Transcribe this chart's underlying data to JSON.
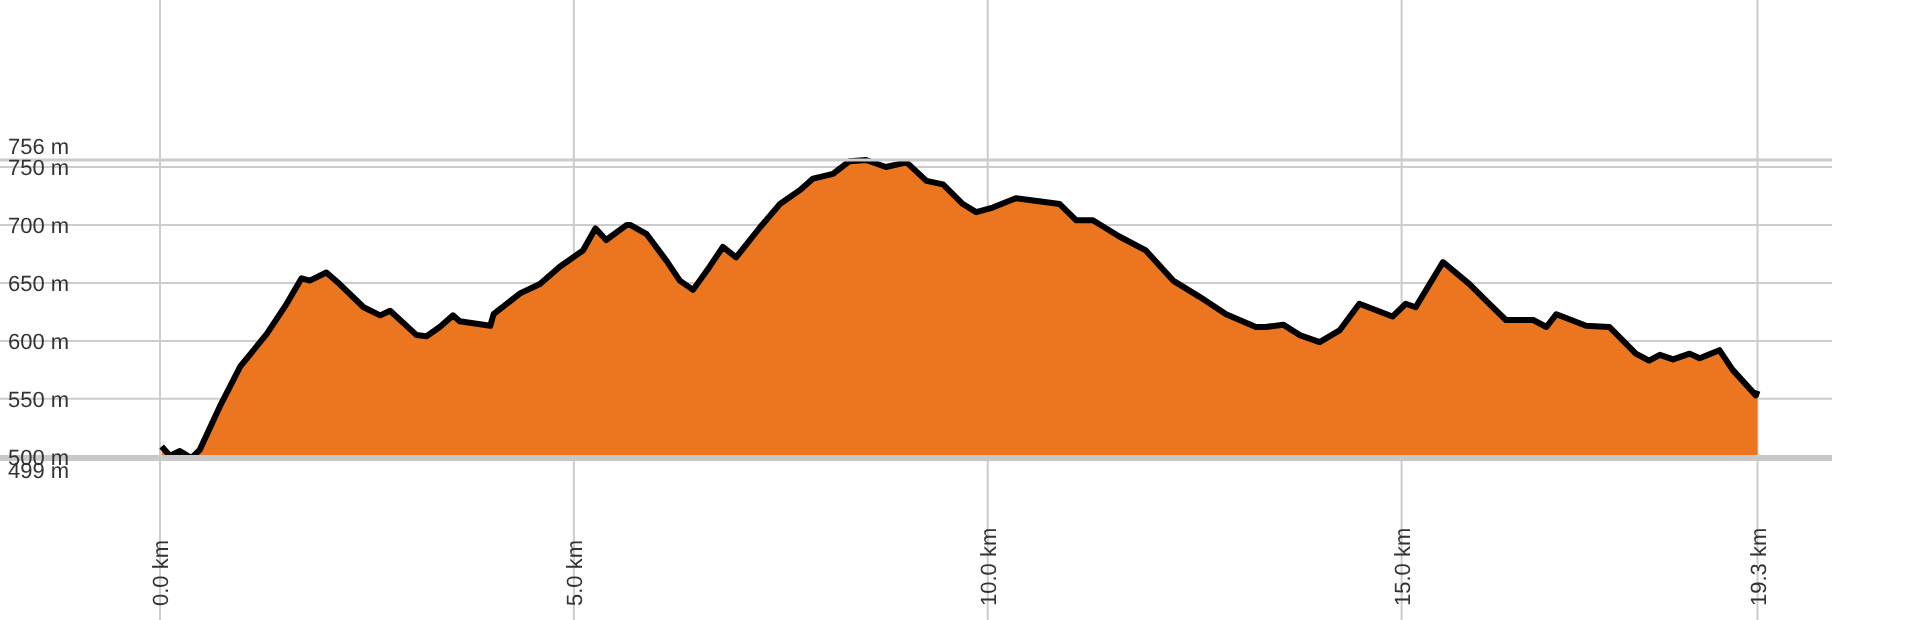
{
  "chart_data": {
    "type": "area",
    "x": [
      0.02,
      0.12,
      0.24,
      0.38,
      0.48,
      0.72,
      0.97,
      1.29,
      1.53,
      1.71,
      1.81,
      2.01,
      2.17,
      2.46,
      2.66,
      2.78,
      3.1,
      3.22,
      3.38,
      3.54,
      3.62,
      3.99,
      4.03,
      4.35,
      4.59,
      4.83,
      5.11,
      5.26,
      5.39,
      5.64,
      5.68,
      5.88,
      6.12,
      6.28,
      6.44,
      6.64,
      6.8,
      6.96,
      7.25,
      7.49,
      7.73,
      7.89,
      8.13,
      8.33,
      8.53,
      8.77,
      9.02,
      9.26,
      9.46,
      9.7,
      9.86,
      10.06,
      10.34,
      10.55,
      10.87,
      11.07,
      11.27,
      11.59,
      11.91,
      12.24,
      12.56,
      12.88,
      13.24,
      13.36,
      13.57,
      13.77,
      14.01,
      14.25,
      14.49,
      14.89,
      15.05,
      15.17,
      15.5,
      15.82,
      16.06,
      16.26,
      16.59,
      16.75,
      16.87,
      17.23,
      17.51,
      17.83,
      17.99,
      18.12,
      18.28,
      18.48,
      18.6,
      18.84,
      19.0,
      19.28,
      19.3
    ],
    "series": [
      {
        "color": "#ec7620",
        "values": [
          509,
          501,
          505,
          499,
          506,
          543,
          578,
          606,
          632,
          654,
          652,
          659,
          649,
          629,
          622,
          626,
          605,
          604,
          612,
          622,
          617,
          613,
          623,
          641,
          649,
          664,
          678,
          697,
          687,
          700,
          700,
          692,
          669,
          652,
          644,
          664,
          681,
          672,
          698,
          718,
          730,
          740,
          744,
          755,
          756,
          750,
          754,
          738,
          735,
          718,
          711,
          715,
          723,
          721,
          718,
          704,
          704,
          690,
          678,
          652,
          638,
          623,
          612,
          612,
          614,
          605,
          599,
          609,
          632,
          621,
          632,
          629,
          668,
          649,
          632,
          618,
          618,
          612,
          623,
          613,
          612,
          589,
          583,
          588,
          584,
          589,
          585,
          592,
          575,
          553,
          557
        ]
      }
    ],
    "xlim": [
      0,
      20.2
    ],
    "ylim": [
      499,
      756
    ],
    "xticks": [
      {
        "value": 0,
        "label": "0.0 km"
      },
      {
        "value": 5,
        "label": "5.0 km"
      },
      {
        "value": 10,
        "label": "10.0 km"
      },
      {
        "value": 15,
        "label": "15.0 km"
      },
      {
        "value": 19.3,
        "label": "19.3 km"
      }
    ],
    "yticks": [
      {
        "value": 500,
        "label": "500 m"
      },
      {
        "value": 550,
        "label": "550 m"
      },
      {
        "value": 600,
        "label": "600 m"
      },
      {
        "value": 650,
        "label": "650 m"
      },
      {
        "value": 700,
        "label": "700 m"
      },
      {
        "value": 750,
        "label": "750 m"
      }
    ],
    "ref_lines": [
      {
        "axis": "y",
        "value": 499,
        "label": "499 m",
        "color": "#c8c8c8"
      },
      {
        "axis": "y",
        "value": 756,
        "label": "756 m",
        "color": "#cccccc"
      }
    ],
    "grid": true
  }
}
